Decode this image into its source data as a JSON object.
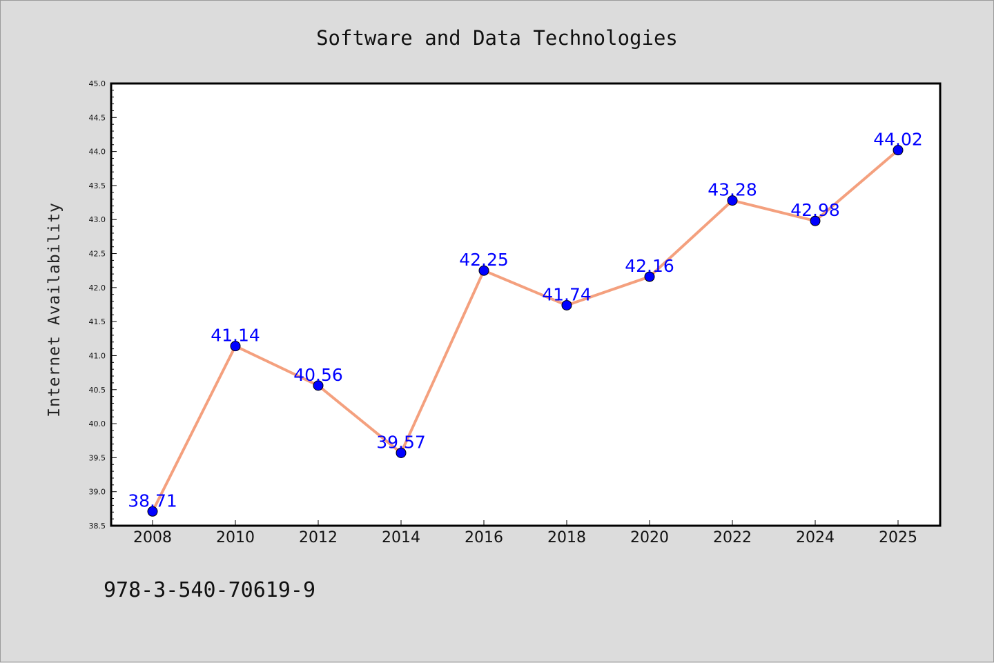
{
  "chart_data": {
    "type": "line",
    "title": "Software and Data Technologies",
    "xlabel": "",
    "ylabel": "Internet Availability",
    "categories": [
      "2008",
      "2010",
      "2012",
      "2014",
      "2016",
      "2018",
      "2020",
      "2022",
      "2024",
      "2025"
    ],
    "series": [
      {
        "values": [
          38.71,
          41.14,
          40.56,
          39.57,
          42.25,
          41.74,
          42.16,
          43.28,
          42.98,
          44.02
        ],
        "labels": [
          "38.71",
          "41.14",
          "40.56",
          "39.57",
          "42.25",
          "41.74",
          "42.16",
          "43.28",
          "42.98",
          "44.02"
        ],
        "line_color": "#f4a07e",
        "marker_color": "#0000ff"
      }
    ],
    "ylim": [
      38.5,
      45.0
    ],
    "yticks": [
      "38.5",
      "39.0",
      "39.5",
      "40.0",
      "40.5",
      "41.0",
      "41.5",
      "42.0",
      "42.5",
      "43.0",
      "43.5",
      "44.0",
      "44.5",
      "45.0"
    ],
    "grid": false,
    "legend": "none"
  },
  "footnote": "978-3-540-70619-9",
  "colors": {
    "background": "#dcdcdc",
    "plot_background": "#ffffff",
    "label_color": "#0000ff"
  }
}
